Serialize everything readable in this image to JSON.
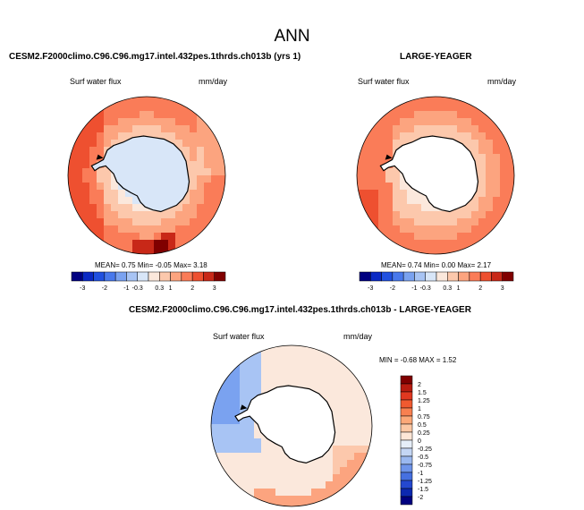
{
  "page": {
    "title": "ANN"
  },
  "colors": {
    "land": "#ffffff",
    "coast": "#000000",
    "palette": [
      "#000080",
      "#0a29c4",
      "#2050e0",
      "#4878ec",
      "#7aa2f0",
      "#a8c4f4",
      "#d8e6f8",
      "#fbe8dc",
      "#fcc8ac",
      "#fca47f",
      "#fa7c58",
      "#ee5030",
      "#c82818",
      "#800000"
    ]
  },
  "chart_data": [
    {
      "type": "heatmap",
      "projection": "south-polar-stereographic",
      "title": "CESM2.F2000climo.C96.C96.mg17.intel.432pes.1thrds.ch013b (yrs 1)",
      "variable": "Surf water flux",
      "units": "mm/day",
      "stats": {
        "mean_label": "MEAN=",
        "mean": "0.75",
        "min_label": "Min=",
        "min": "-0.05",
        "max_label": "Max=",
        "max": "3.18"
      },
      "colorbar": {
        "orientation": "horizontal",
        "ticks": [
          "-3",
          "-2",
          "-1",
          "-0.3",
          "0.3",
          "1",
          "2",
          "3"
        ],
        "levels": 14
      },
      "field_kind": "model"
    },
    {
      "type": "heatmap",
      "projection": "south-polar-stereographic",
      "title": "LARGE-YEAGER",
      "variable": "Surf water flux",
      "units": "mm/day",
      "stats": {
        "mean_label": "MEAN=",
        "mean": "0.74",
        "min_label": "Min=",
        "min": "0.00",
        "max_label": "Max=",
        "max": "2.17"
      },
      "colorbar": {
        "orientation": "horizontal",
        "ticks": [
          "-3",
          "-2",
          "-1",
          "-0.3",
          "0.3",
          "1",
          "2",
          "3"
        ],
        "levels": 14
      },
      "field_kind": "obs"
    },
    {
      "type": "heatmap",
      "projection": "south-polar-stereographic",
      "title": "CESM2.F2000climo.C96.C96.mg17.intel.432pes.1thrds.ch013b - LARGE-YEAGER",
      "variable": "Surf water flux",
      "units": "mm/day",
      "stats": {
        "min_label": "MIN =",
        "min": "-0.68",
        "max_label": "MAX =",
        "max": "1.52"
      },
      "colorbar": {
        "orientation": "vertical",
        "ticks": [
          "2",
          "1.5",
          "1.25",
          "1",
          "0.75",
          "0.5",
          "0.25",
          "0",
          "-0.25",
          "-0.5",
          "-0.75",
          "-1",
          "-1.25",
          "-1.5",
          "-2"
        ],
        "levels": 16
      },
      "field_kind": "diff"
    }
  ]
}
